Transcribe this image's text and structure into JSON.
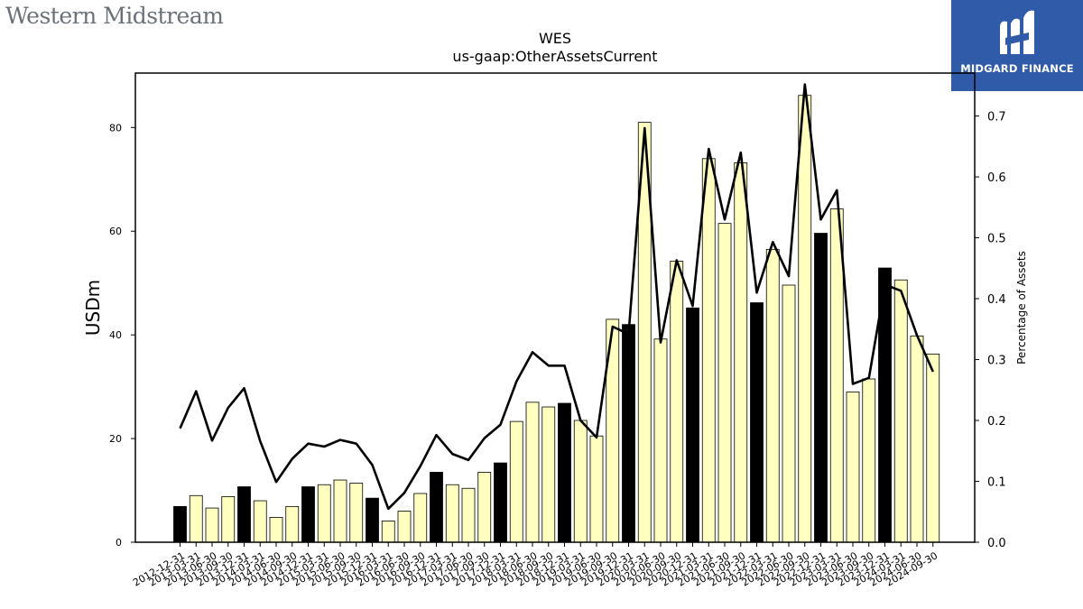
{
  "header": {
    "logo_text": "Western Midstream",
    "brand_name": "MIDGARD FINANCE",
    "brand_logo_icon": "midgard-mark-icon"
  },
  "chart_data": {
    "type": "bar",
    "title": "WES",
    "subtitle": "us-gaap:OtherAssetsCurrent",
    "ylabel": "USDm",
    "y2label": "Percentage of Assets",
    "ylim": [
      0,
      90.5
    ],
    "y2lim": [
      0,
      0.7705
    ],
    "yticks": [
      0,
      20,
      40,
      60,
      80
    ],
    "y2ticks": [
      0.0,
      0.1,
      0.2,
      0.3,
      0.4,
      0.5,
      0.6,
      0.7
    ],
    "y2tick_labels": [
      "0.0",
      "0.1",
      "0.2",
      "0.3",
      "0.4",
      "0.5",
      "0.6",
      "0.7"
    ],
    "colors": {
      "bar_annual": "#000000",
      "bar_quarter": "#ffffc0",
      "bar_edge": "#000000",
      "line": "#000000",
      "brand": "#2f5ba8"
    },
    "categories": [
      "2012-12-31",
      "2013-03-31",
      "2013-06-30",
      "2013-09-30",
      "2013-12-31",
      "2014-03-31",
      "2014-06-30",
      "2014-09-30",
      "2014-12-31",
      "2015-03-31",
      "2015-06-30",
      "2015-09-30",
      "2015-12-31",
      "2016-03-31",
      "2016-06-30",
      "2016-09-30",
      "2016-12-31",
      "2017-03-31",
      "2017-06-30",
      "2017-09-30",
      "2017-12-31",
      "2018-03-31",
      "2018-06-30",
      "2018-09-30",
      "2018-12-31",
      "2019-03-31",
      "2019-06-30",
      "2019-09-30",
      "2019-12-31",
      "2020-03-31",
      "2020-06-30",
      "2020-09-30",
      "2020-12-31",
      "2021-03-31",
      "2021-06-30",
      "2021-09-30",
      "2021-12-31",
      "2022-03-31",
      "2022-06-30",
      "2022-09-30",
      "2022-12-31",
      "2023-03-31",
      "2023-06-30",
      "2023-09-30",
      "2023-12-31",
      "2024-03-31",
      "2024-06-30",
      "2024-09-30"
    ],
    "series": [
      {
        "kind": "bar",
        "values": [
          6.9,
          9.0,
          6.6,
          8.8,
          10.7,
          8.0,
          4.8,
          6.9,
          10.7,
          11.1,
          12.0,
          11.4,
          8.5,
          4.1,
          6.0,
          9.4,
          13.5,
          11.1,
          10.4,
          13.5,
          15.3,
          23.3,
          27.0,
          26.1,
          26.8,
          23.5,
          20.5,
          43.0,
          42.0,
          81.0,
          39.2,
          54.2,
          45.2,
          74.0,
          61.5,
          73.2,
          46.2,
          56.5,
          49.6,
          86.2,
          59.6,
          64.3,
          29.0,
          31.5,
          52.9,
          50.6,
          39.8,
          36.3
        ]
      },
      {
        "kind": "line",
        "axis": "right",
        "values": [
          0.187,
          0.248,
          0.167,
          0.221,
          0.253,
          0.166,
          0.099,
          0.137,
          0.162,
          0.157,
          0.168,
          0.162,
          0.127,
          0.055,
          0.081,
          0.125,
          0.176,
          0.145,
          0.135,
          0.171,
          0.193,
          0.264,
          0.312,
          0.29,
          0.29,
          0.2,
          0.172,
          0.354,
          0.342,
          0.68,
          0.328,
          0.463,
          0.388,
          0.646,
          0.53,
          0.64,
          0.41,
          0.493,
          0.437,
          0.752,
          0.53,
          0.578,
          0.26,
          0.27,
          0.423,
          0.413,
          0.34,
          0.28
        ]
      }
    ]
  }
}
